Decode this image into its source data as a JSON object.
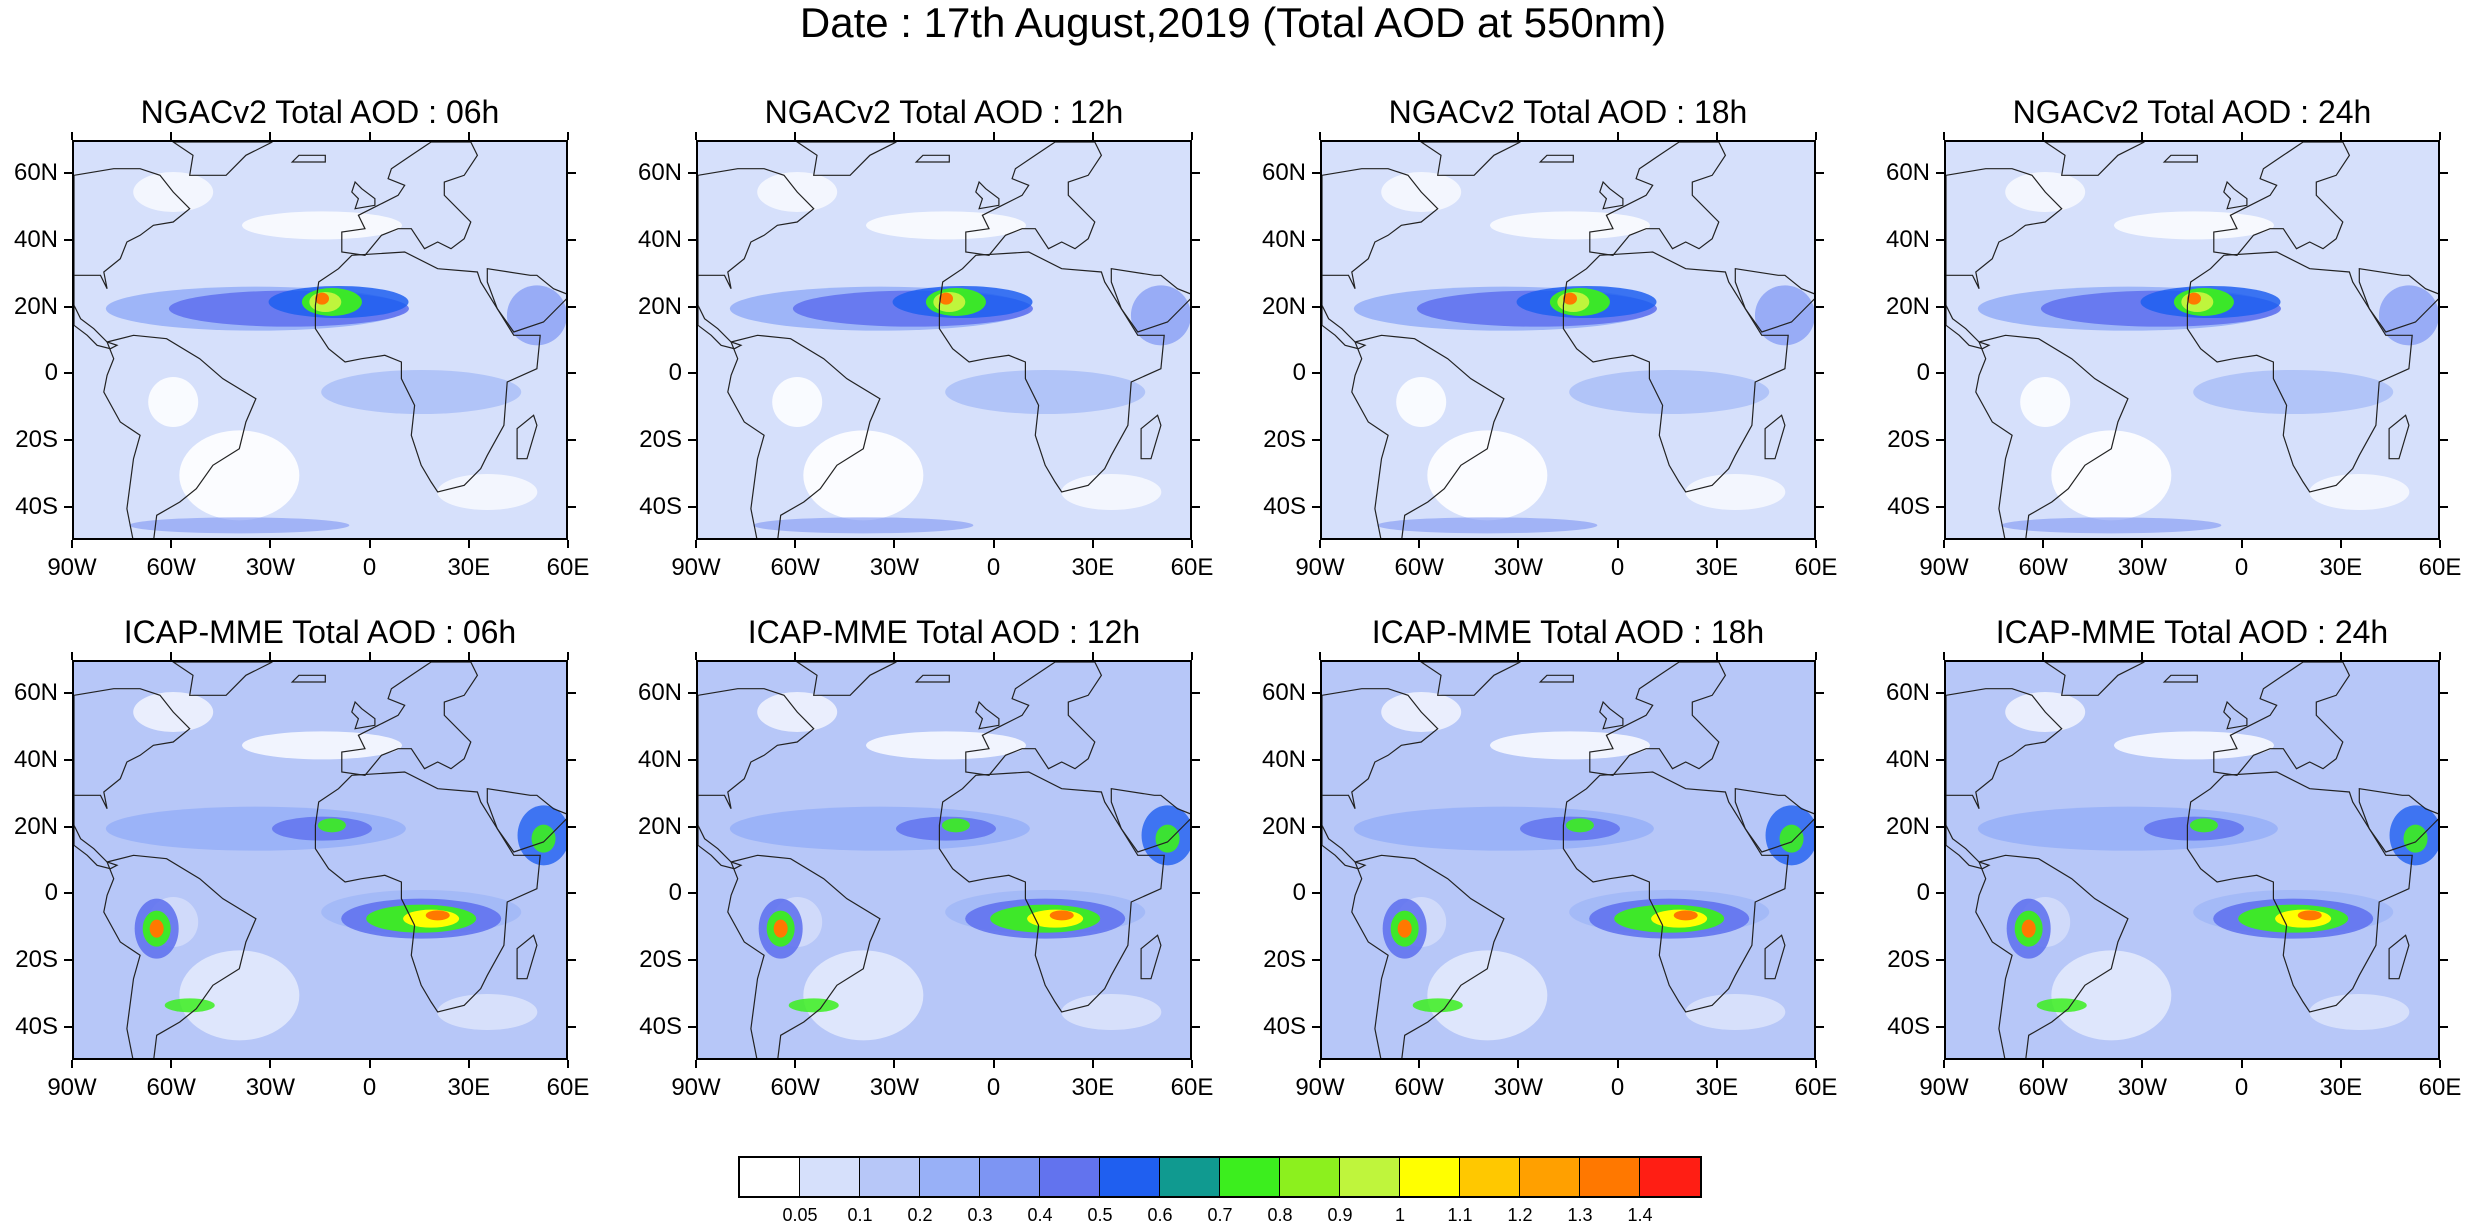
{
  "title": "Date : 17th August,2019 (Total AOD at 550nm)",
  "lat_labels": [
    "60N",
    "40N",
    "20N",
    "0",
    "20S",
    "40S"
  ],
  "lat_values": [
    60,
    40,
    20,
    0,
    -20,
    -40
  ],
  "lon_labels": [
    "90W",
    "60W",
    "30W",
    "0",
    "30E",
    "60E"
  ],
  "lon_values": [
    -90,
    -60,
    -30,
    0,
    30,
    60
  ],
  "map_extent": {
    "lon": [
      -90,
      60
    ],
    "lat": [
      -50,
      70
    ]
  },
  "panels": [
    {
      "title": "NGACv2 Total AOD : 06h",
      "model": "NGACv2",
      "hour": "06h"
    },
    {
      "title": "NGACv2 Total AOD : 12h",
      "model": "NGACv2",
      "hour": "12h"
    },
    {
      "title": "NGACv2 Total AOD : 18h",
      "model": "NGACv2",
      "hour": "18h"
    },
    {
      "title": "NGACv2 Total AOD : 24h",
      "model": "NGACv2",
      "hour": "24h"
    },
    {
      "title": "ICAP-MME Total AOD : 06h",
      "model": "ICAP-MME",
      "hour": "06h"
    },
    {
      "title": "ICAP-MME Total AOD : 12h",
      "model": "ICAP-MME",
      "hour": "12h"
    },
    {
      "title": "ICAP-MME Total AOD : 18h",
      "model": "ICAP-MME",
      "hour": "18h"
    },
    {
      "title": "ICAP-MME Total AOD : 24h",
      "model": "ICAP-MME",
      "hour": "24h"
    }
  ],
  "colorbar": {
    "labels": [
      "0.05",
      "0.1",
      "0.2",
      "0.3",
      "0.4",
      "0.5",
      "0.6",
      "0.7",
      "0.8",
      "0.9",
      "1",
      "1.1",
      "1.2",
      "1.3",
      "1.4"
    ],
    "colors": [
      "#ffffff",
      "#d6e0fb",
      "#b7c7f8",
      "#98b0f7",
      "#7d95f3",
      "#6273ee",
      "#1f5ff0",
      "#109a90",
      "#3cee1e",
      "#8cf01e",
      "#bff53c",
      "#ffff00",
      "#ffc800",
      "#ffa000",
      "#ff7800",
      "#ff1e14"
    ]
  }
}
